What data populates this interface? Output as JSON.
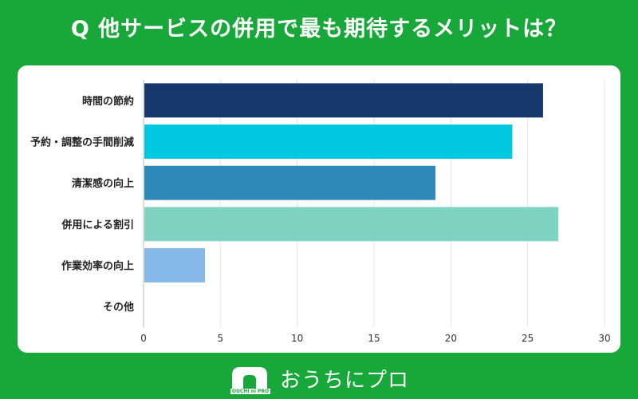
{
  "title": "Q 他サービスの併用で最も期待するメリットは？",
  "brand": {
    "name": "おうちにプロ",
    "logo_sub": "OUCHI ni PRO"
  },
  "colors": {
    "background": "#18a83a",
    "grid": "#e3e3e3"
  },
  "chart_data": {
    "type": "bar",
    "orientation": "horizontal",
    "categories": [
      "時間の節約",
      "予約・調整の手間削減",
      "清潔感の向上",
      "併用による割引",
      "作業効率の向上",
      "その他"
    ],
    "values": [
      26,
      24,
      19,
      27,
      4,
      0
    ],
    "colors": [
      "#16386b",
      "#00c8e0",
      "#2e88b8",
      "#7fd3c2",
      "#86b8ea",
      "#cccccc"
    ],
    "xlim": [
      0,
      30
    ],
    "xticks": [
      0,
      5,
      10,
      15,
      20,
      25,
      30
    ],
    "title": "Q 他サービスの併用で最も期待するメリットは？",
    "xlabel": "",
    "ylabel": "",
    "grid": true
  }
}
